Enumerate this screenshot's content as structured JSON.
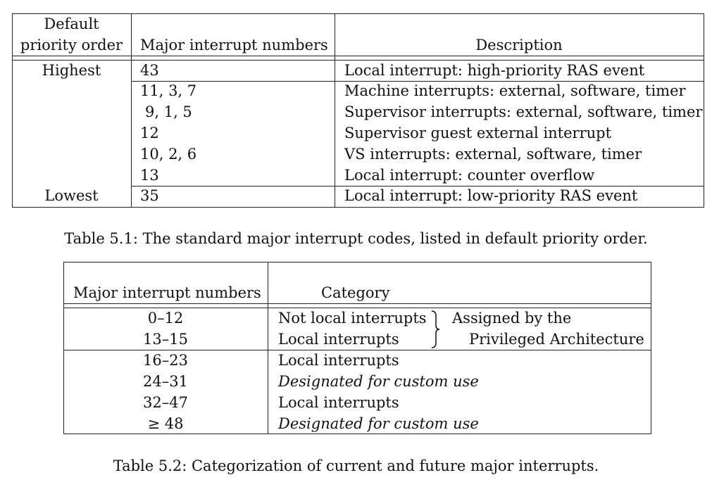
{
  "table1": {
    "headers": {
      "priority_line1": "Default",
      "priority_line2": "priority order",
      "numbers": "Major interrupt numbers",
      "description": "Description"
    },
    "priority_highest": "Highest",
    "priority_lowest": "Lowest",
    "rows": [
      {
        "numbers": "43",
        "description": "Local interrupt: high-priority RAS event"
      },
      {
        "numbers": "11, 3, 7",
        "description": "Machine interrupts: external, software, timer"
      },
      {
        "numbers": "9, 1, 5",
        "description": "Supervisor interrupts: external, software, timer"
      },
      {
        "numbers": "12",
        "description": "Supervisor guest external interrupt"
      },
      {
        "numbers": "10, 2, 6",
        "description": "VS interrupts: external, software, timer"
      },
      {
        "numbers": "13",
        "description": "Local interrupt: counter overflow"
      },
      {
        "numbers": "35",
        "description": "Local interrupt: low-priority RAS event"
      }
    ],
    "caption": "Table 5.1: The standard major interrupt codes, listed in default priority order."
  },
  "table2": {
    "headers": {
      "numbers": "Major interrupt numbers",
      "category": "Category"
    },
    "rows": [
      {
        "numbers": "0–12",
        "category": "Not local interrupts"
      },
      {
        "numbers": "13–15",
        "category": "Local interrupts"
      },
      {
        "numbers": "16–23",
        "category": "Local interrupts"
      },
      {
        "numbers": "24–31",
        "category": "Designated for custom use"
      },
      {
        "numbers": "32–47",
        "category": "Local interrupts"
      },
      {
        "numbers": "≥ 48",
        "category": "Designated for custom use"
      }
    ],
    "assigned_line1": "Assigned by the",
    "assigned_line2": "Privileged Architecture",
    "caption": "Table 5.2: Categorization of current and future major interrupts."
  }
}
